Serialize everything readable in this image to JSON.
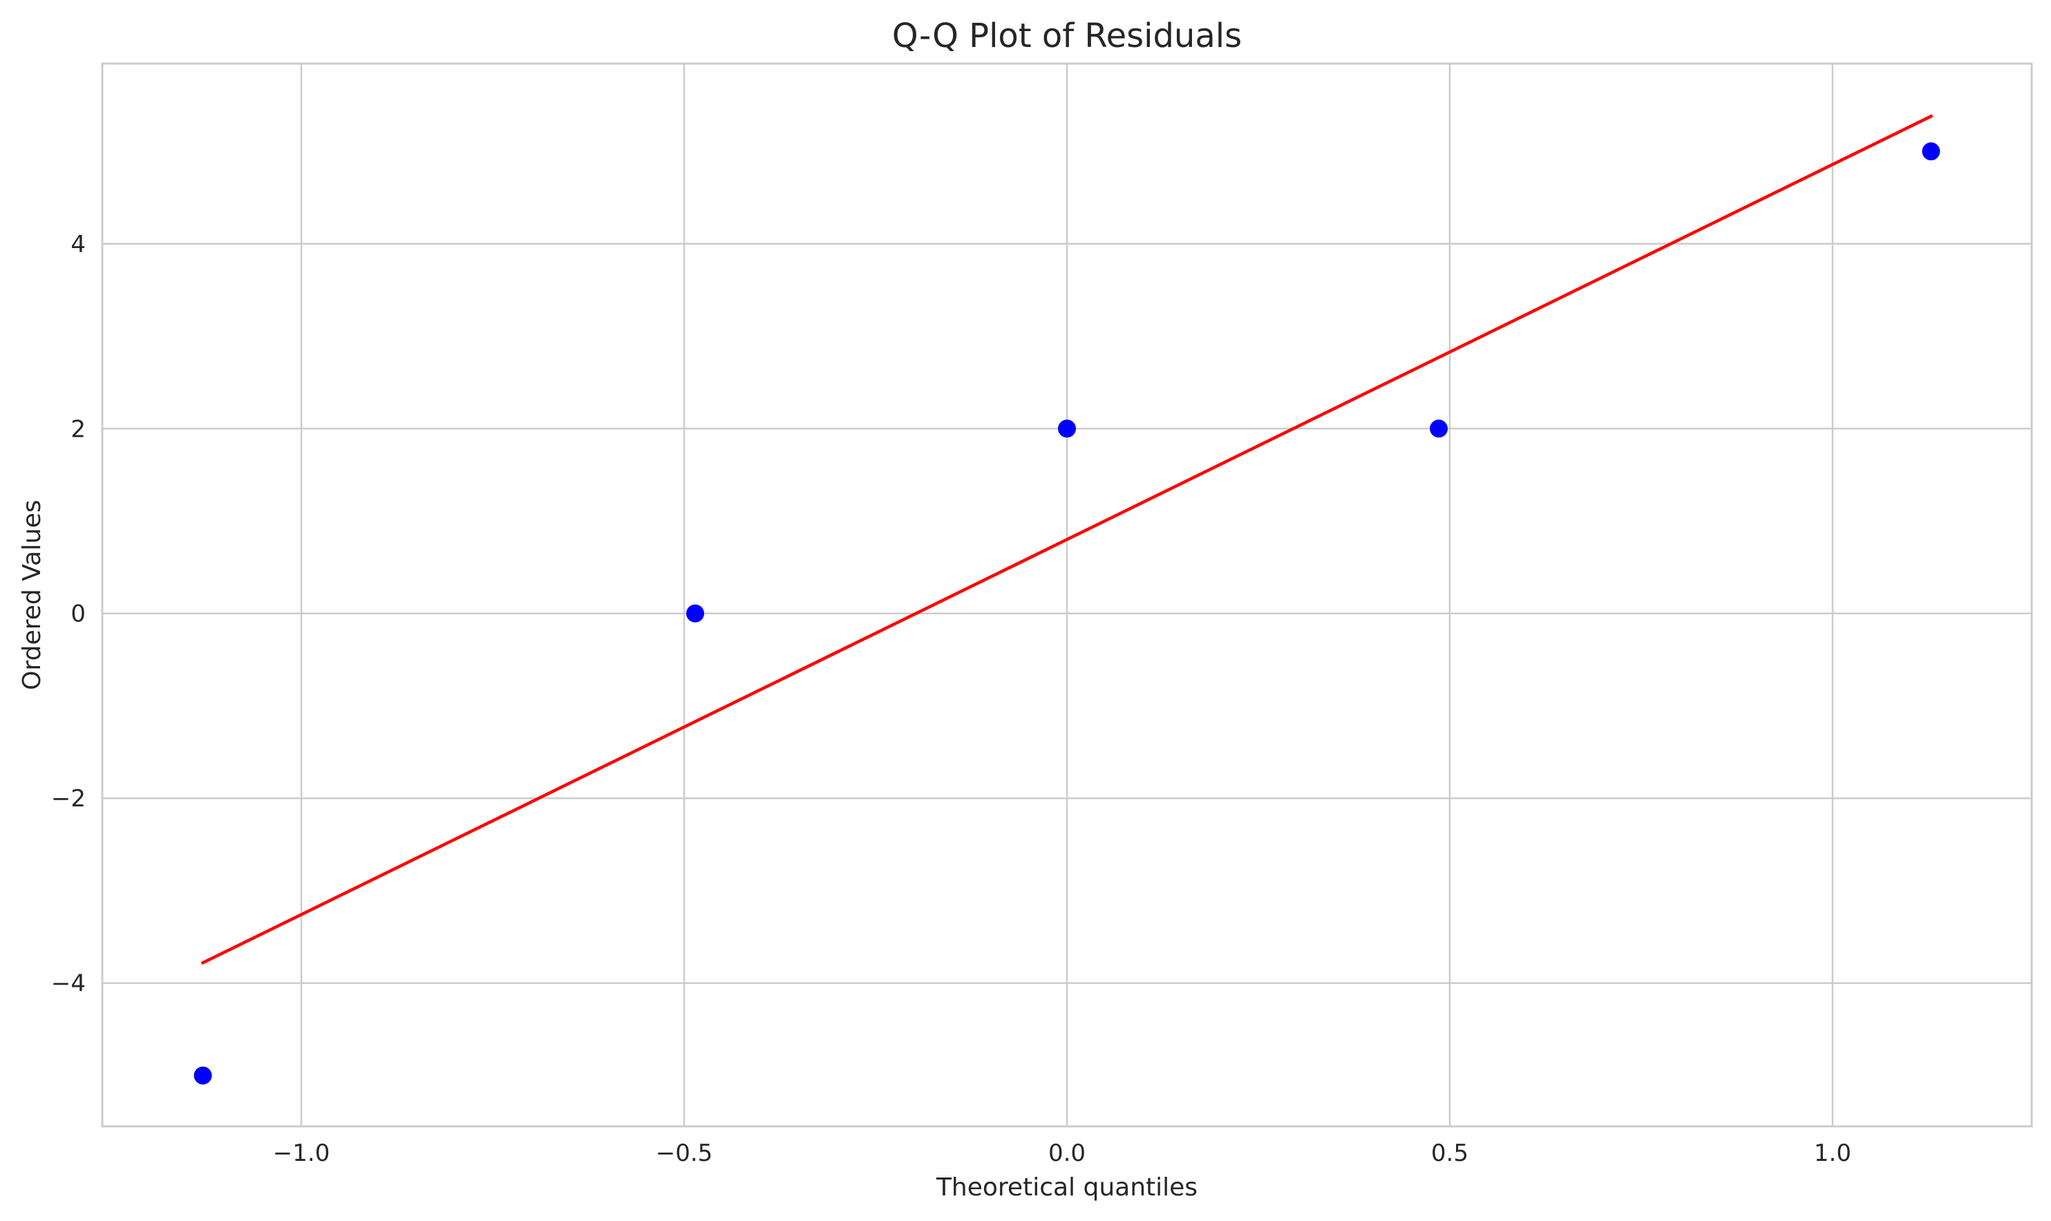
{
  "chart_data": {
    "type": "scatter",
    "title": "Q-Q Plot of Residuals",
    "xlabel": "Theoretical quantiles",
    "ylabel": "Ordered Values",
    "xlim": [
      -1.26,
      1.26
    ],
    "ylim": [
      -5.55,
      5.95
    ],
    "x_ticks": [
      -1.0,
      -0.5,
      0.0,
      0.5,
      1.0
    ],
    "x_tick_labels": [
      "−1.0",
      "−0.5",
      "0.0",
      "0.5",
      "1.0"
    ],
    "y_ticks": [
      -4,
      -2,
      0,
      2,
      4
    ],
    "y_tick_labels": [
      "−4",
      "−2",
      "0",
      "2",
      "4"
    ],
    "grid": true,
    "series": [
      {
        "type": "scatter",
        "color": "#0000ff",
        "x": [
          -1.1286,
          -0.4856,
          0.0,
          0.4856,
          1.1286
        ],
        "y": [
          -5,
          0,
          2,
          2,
          5
        ]
      },
      {
        "type": "line",
        "color": "#ff0000",
        "x": [
          -1.1286,
          1.1286
        ],
        "y": [
          -3.78,
          5.38
        ]
      }
    ]
  }
}
